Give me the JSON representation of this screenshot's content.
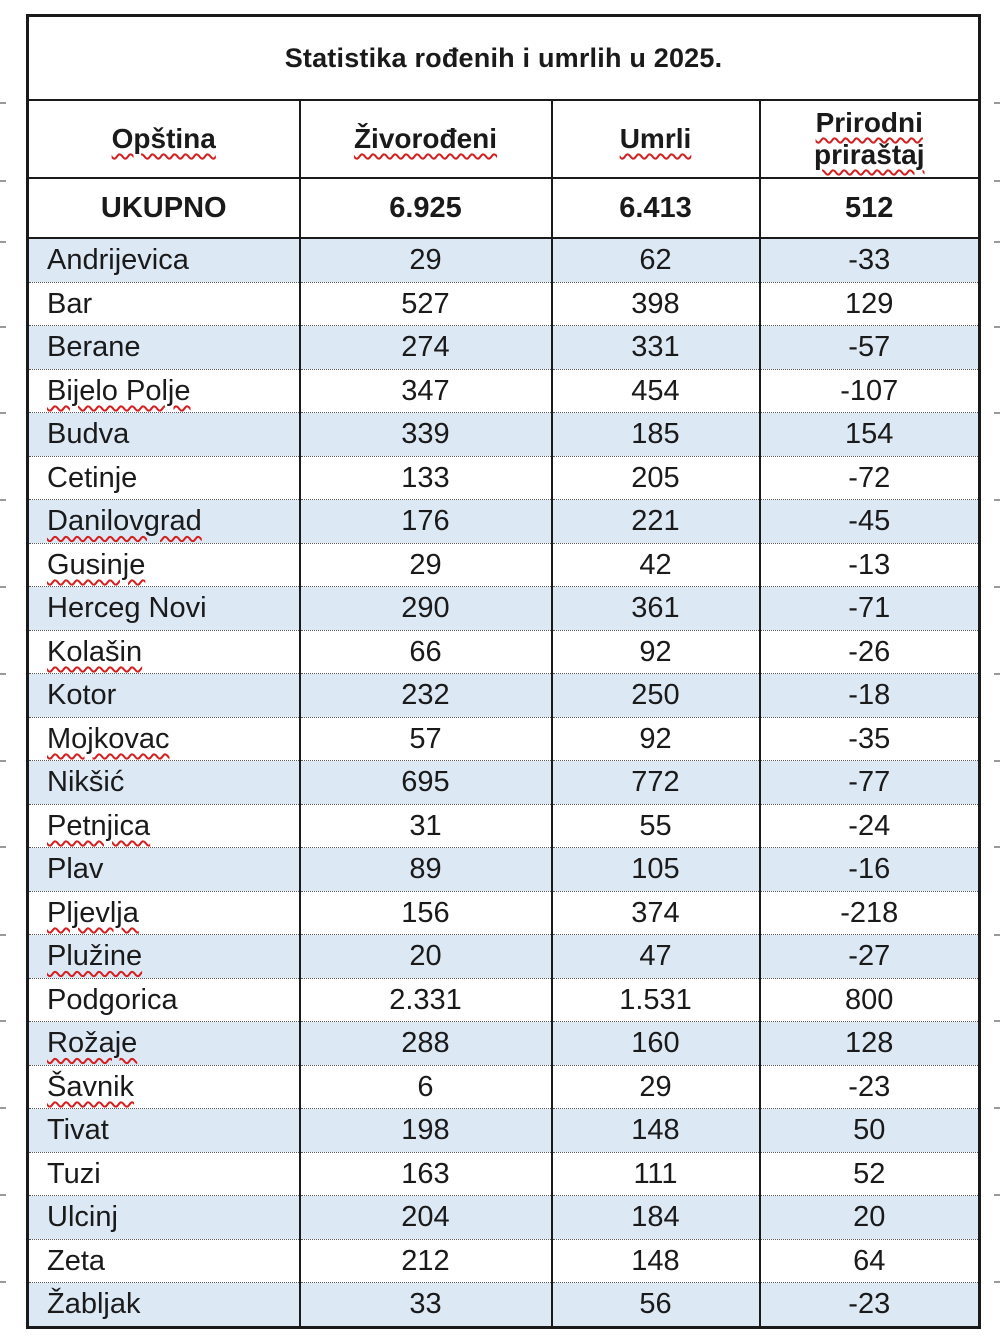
{
  "table": {
    "title": "Statistika rođenih i umrlih u 2025.",
    "headers": [
      {
        "line1": "Opština",
        "line2": ""
      },
      {
        "line1": "Živorođeni",
        "line2": ""
      },
      {
        "line1": "Umrli",
        "line2": ""
      },
      {
        "line1": "Prirodni",
        "line2": "priraštaj"
      }
    ],
    "total": {
      "label": "UKUPNO",
      "born": "6.925",
      "died": "6.413",
      "growth": "512"
    },
    "rows": [
      {
        "name": "Andrijevica",
        "born": "29",
        "died": "62",
        "growth": "-33"
      },
      {
        "name": "Bar",
        "born": "527",
        "died": "398",
        "growth": "129"
      },
      {
        "name": "Berane",
        "born": "274",
        "died": "331",
        "growth": "-57"
      },
      {
        "name": "Bijelo Polje",
        "born": "347",
        "died": "454",
        "growth": "-107"
      },
      {
        "name": "Budva",
        "born": "339",
        "died": "185",
        "growth": "154"
      },
      {
        "name": "Cetinje",
        "born": "133",
        "died": "205",
        "growth": "-72"
      },
      {
        "name": "Danilovgrad",
        "born": "176",
        "died": "221",
        "growth": "-45"
      },
      {
        "name": "Gusinje",
        "born": "29",
        "died": "42",
        "growth": "-13"
      },
      {
        "name": "Herceg Novi",
        "born": "290",
        "died": "361",
        "growth": "-71"
      },
      {
        "name": "Kolašin",
        "born": "66",
        "died": "92",
        "growth": "-26"
      },
      {
        "name": "Kotor",
        "born": "232",
        "died": "250",
        "growth": "-18"
      },
      {
        "name": "Mojkovac",
        "born": "57",
        "died": "92",
        "growth": "-35"
      },
      {
        "name": "Nikšić",
        "born": "695",
        "died": "772",
        "growth": "-77"
      },
      {
        "name": "Petnjica",
        "born": "31",
        "died": "55",
        "growth": "-24"
      },
      {
        "name": "Plav",
        "born": "89",
        "died": "105",
        "growth": "-16"
      },
      {
        "name": "Pljevlja",
        "born": "156",
        "died": "374",
        "growth": "-218"
      },
      {
        "name": "Plužine",
        "born": "20",
        "died": "47",
        "growth": "-27"
      },
      {
        "name": "Podgorica",
        "born": "2.331",
        "died": "1.531",
        "growth": "800"
      },
      {
        "name": "Rožaje",
        "born": "288",
        "died": "160",
        "growth": "128"
      },
      {
        "name": "Šavnik",
        "born": "6",
        "died": "29",
        "growth": "-23"
      },
      {
        "name": "Tivat",
        "born": "198",
        "died": "148",
        "growth": "50"
      },
      {
        "name": "Tuzi",
        "born": "163",
        "died": "111",
        "growth": "52"
      },
      {
        "name": "Ulcinj",
        "born": "204",
        "died": "184",
        "growth": "20"
      },
      {
        "name": "Zeta",
        "born": "212",
        "died": "148",
        "growth": "64"
      },
      {
        "name": "Žabljak",
        "born": "33",
        "died": "56",
        "growth": "-23"
      }
    ]
  },
  "colors": {
    "row_shade": "#dde8f5",
    "border": "#1a1a1a",
    "spellcheck_underline": "#d32020"
  }
}
